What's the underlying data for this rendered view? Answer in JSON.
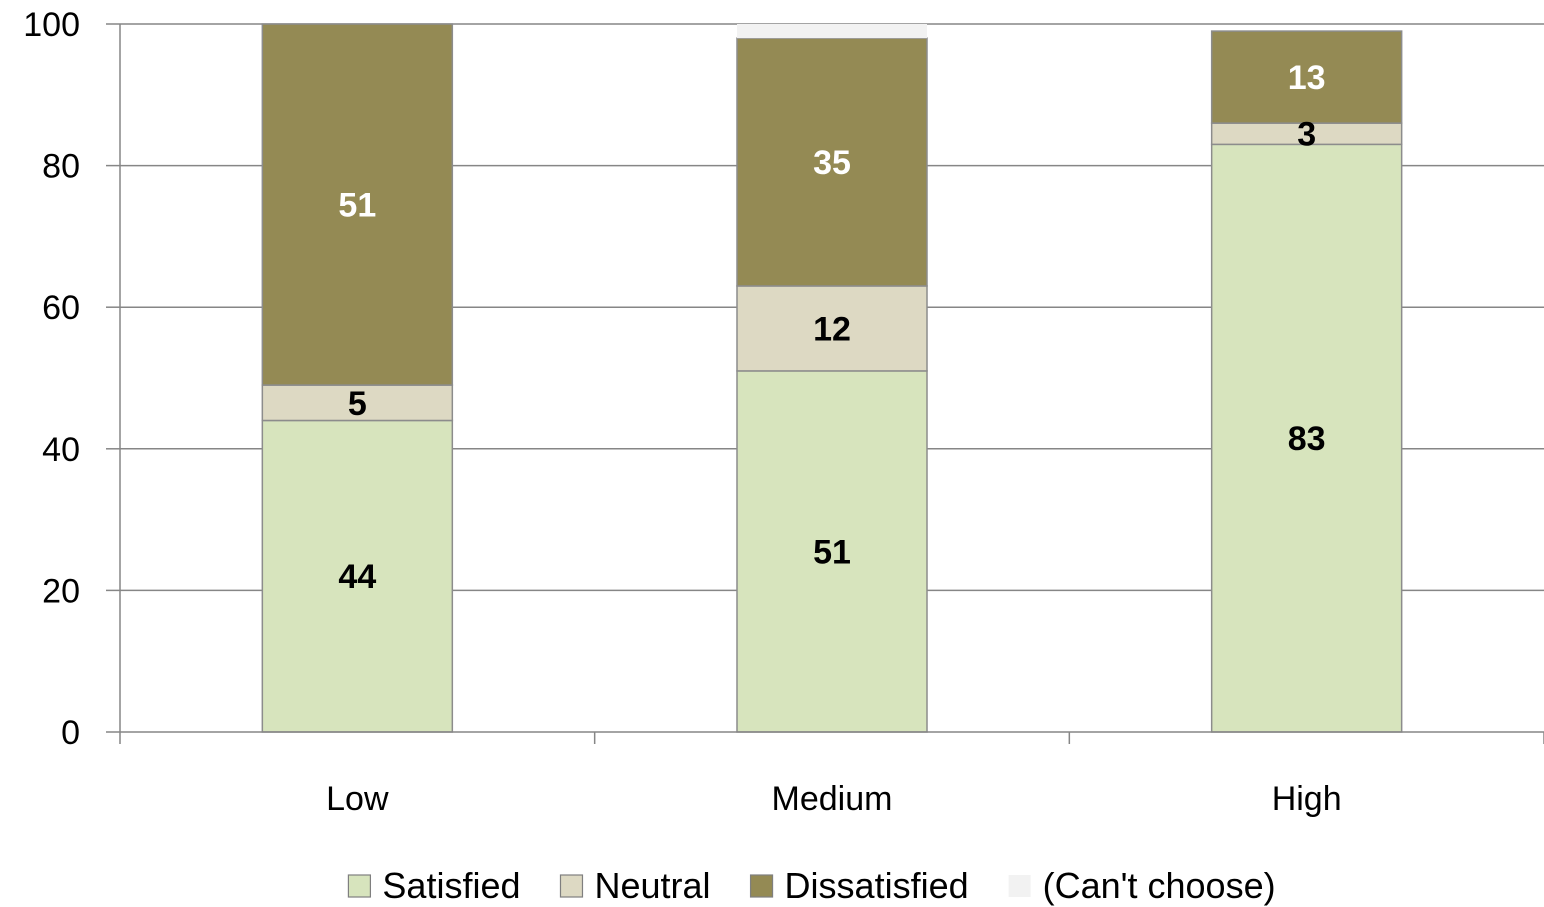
{
  "chart_data": {
    "type": "bar",
    "stacked": true,
    "title": "",
    "xlabel": "",
    "ylabel": "",
    "ylim": [
      0,
      100
    ],
    "yticks": [
      0,
      20,
      40,
      60,
      80,
      100
    ],
    "grid": true,
    "legend": "bottom",
    "categories": [
      "Low",
      "Medium",
      "High"
    ],
    "series": [
      {
        "name": "Satisfied",
        "values": [
          44,
          51,
          83
        ],
        "labels": [
          "44",
          "51",
          "83"
        ],
        "color": "#d7e4bd",
        "label_color": "#000000"
      },
      {
        "name": "Neutral",
        "values": [
          5,
          12,
          3
        ],
        "labels": [
          "5",
          "12",
          "3"
        ],
        "color": "#ddd9c3",
        "label_color": "#000000"
      },
      {
        "name": "Dissatisfied",
        "values": [
          51,
          35,
          13
        ],
        "labels": [
          "51",
          "35",
          "13"
        ],
        "color": "#948a54",
        "label_color": "#ffffff"
      },
      {
        "name": "(Can't choose)",
        "values": [
          0,
          2,
          0
        ],
        "labels": [],
        "color": "#f2f2f2",
        "label_color": "#000000"
      }
    ]
  }
}
